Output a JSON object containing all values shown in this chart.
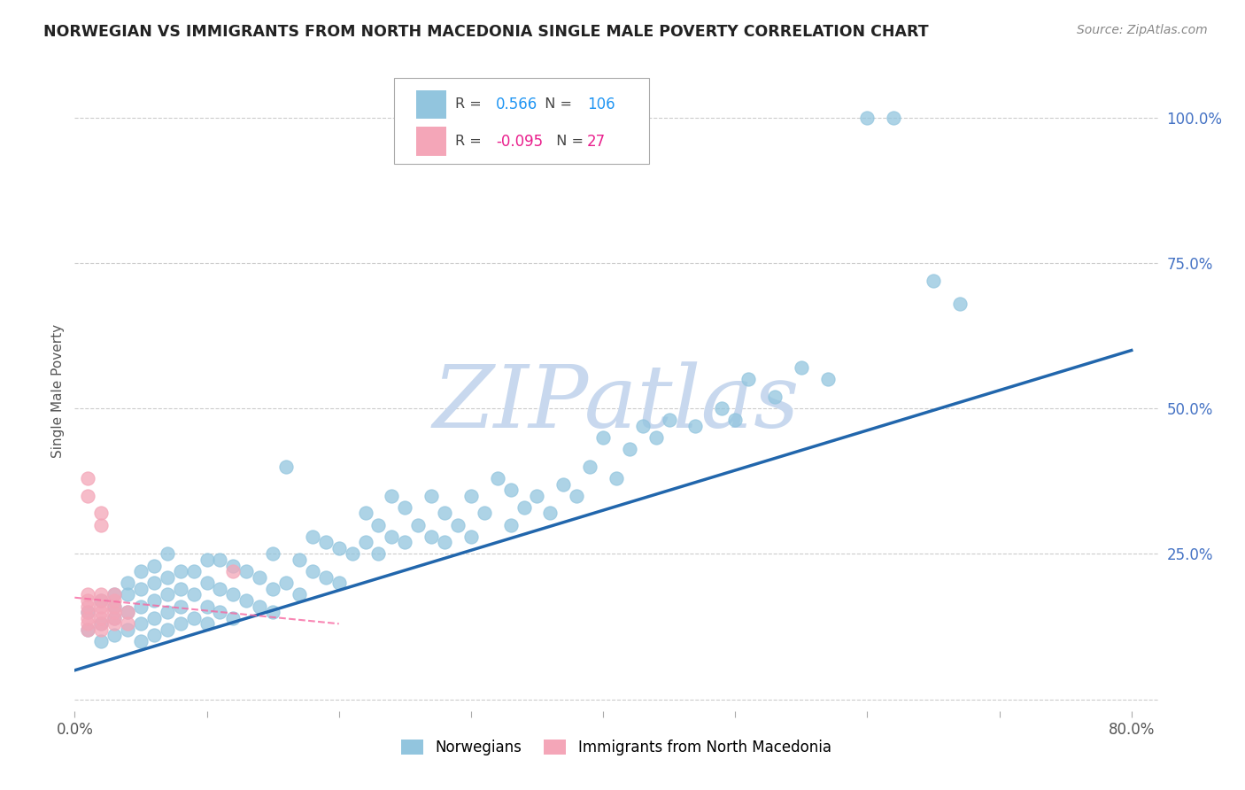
{
  "title": "NORWEGIAN VS IMMIGRANTS FROM NORTH MACEDONIA SINGLE MALE POVERTY CORRELATION CHART",
  "source": "Source: ZipAtlas.com",
  "ylabel": "Single Male Poverty",
  "xlim": [
    0.0,
    0.82
  ],
  "ylim": [
    -0.02,
    1.08
  ],
  "xtick_positions": [
    0.0,
    0.1,
    0.2,
    0.3,
    0.4,
    0.5,
    0.6,
    0.7,
    0.8
  ],
  "xtick_labels": [
    "0.0%",
    "",
    "",
    "",
    "",
    "",
    "",
    "",
    "80.0%"
  ],
  "ytick_right_values": [
    0.0,
    0.25,
    0.5,
    0.75,
    1.0
  ],
  "ytick_right_labels": [
    "",
    "25.0%",
    "50.0%",
    "75.0%",
    "100.0%"
  ],
  "legend_blue_r": "0.566",
  "legend_blue_n": "106",
  "legend_pink_r": "-0.095",
  "legend_pink_n": "27",
  "blue_color": "#92c5de",
  "pink_color": "#f4a6b8",
  "line_blue_color": "#2166ac",
  "line_pink_color": "#f768a1",
  "watermark": "ZIPatlas",
  "watermark_color": "#c8d8ee",
  "background_color": "#ffffff",
  "grid_color": "#cccccc",
  "blue_line_x0": 0.0,
  "blue_line_y0": 0.05,
  "blue_line_x1": 0.8,
  "blue_line_y1": 0.6,
  "pink_line_x0": 0.0,
  "pink_line_y0": 0.175,
  "pink_line_x1": 0.2,
  "pink_line_y1": 0.13,
  "blue_scatter_x": [
    0.01,
    0.01,
    0.02,
    0.02,
    0.02,
    0.03,
    0.03,
    0.03,
    0.03,
    0.04,
    0.04,
    0.04,
    0.04,
    0.05,
    0.05,
    0.05,
    0.05,
    0.05,
    0.06,
    0.06,
    0.06,
    0.06,
    0.06,
    0.07,
    0.07,
    0.07,
    0.07,
    0.07,
    0.08,
    0.08,
    0.08,
    0.08,
    0.09,
    0.09,
    0.09,
    0.1,
    0.1,
    0.1,
    0.1,
    0.11,
    0.11,
    0.11,
    0.12,
    0.12,
    0.12,
    0.13,
    0.13,
    0.14,
    0.14,
    0.15,
    0.15,
    0.15,
    0.16,
    0.16,
    0.17,
    0.17,
    0.18,
    0.18,
    0.19,
    0.19,
    0.2,
    0.2,
    0.21,
    0.22,
    0.22,
    0.23,
    0.23,
    0.24,
    0.24,
    0.25,
    0.25,
    0.26,
    0.27,
    0.27,
    0.28,
    0.28,
    0.29,
    0.3,
    0.3,
    0.31,
    0.32,
    0.33,
    0.33,
    0.34,
    0.35,
    0.36,
    0.37,
    0.38,
    0.39,
    0.4,
    0.41,
    0.42,
    0.43,
    0.44,
    0.45,
    0.47,
    0.49,
    0.5,
    0.51,
    0.53,
    0.55,
    0.57,
    0.6,
    0.62,
    0.65,
    0.67
  ],
  "blue_scatter_y": [
    0.12,
    0.15,
    0.1,
    0.13,
    0.17,
    0.11,
    0.14,
    0.16,
    0.18,
    0.12,
    0.15,
    0.18,
    0.2,
    0.1,
    0.13,
    0.16,
    0.19,
    0.22,
    0.11,
    0.14,
    0.17,
    0.2,
    0.23,
    0.12,
    0.15,
    0.18,
    0.21,
    0.25,
    0.13,
    0.16,
    0.19,
    0.22,
    0.14,
    0.18,
    0.22,
    0.13,
    0.16,
    0.2,
    0.24,
    0.15,
    0.19,
    0.24,
    0.14,
    0.18,
    0.23,
    0.17,
    0.22,
    0.16,
    0.21,
    0.15,
    0.19,
    0.25,
    0.4,
    0.2,
    0.18,
    0.24,
    0.22,
    0.28,
    0.21,
    0.27,
    0.2,
    0.26,
    0.25,
    0.27,
    0.32,
    0.25,
    0.3,
    0.28,
    0.35,
    0.27,
    0.33,
    0.3,
    0.28,
    0.35,
    0.27,
    0.32,
    0.3,
    0.28,
    0.35,
    0.32,
    0.38,
    0.3,
    0.36,
    0.33,
    0.35,
    0.32,
    0.37,
    0.35,
    0.4,
    0.45,
    0.38,
    0.43,
    0.47,
    0.45,
    0.48,
    0.47,
    0.5,
    0.48,
    0.55,
    0.52,
    0.57,
    0.55,
    1.0,
    1.0,
    0.72,
    0.68
  ],
  "pink_scatter_x": [
    0.01,
    0.01,
    0.01,
    0.01,
    0.01,
    0.01,
    0.01,
    0.01,
    0.01,
    0.02,
    0.02,
    0.02,
    0.02,
    0.02,
    0.02,
    0.02,
    0.02,
    0.02,
    0.03,
    0.03,
    0.03,
    0.03,
    0.03,
    0.03,
    0.04,
    0.04,
    0.12
  ],
  "pink_scatter_y": [
    0.12,
    0.13,
    0.14,
    0.15,
    0.16,
    0.17,
    0.18,
    0.35,
    0.38,
    0.12,
    0.13,
    0.14,
    0.15,
    0.16,
    0.17,
    0.18,
    0.3,
    0.32,
    0.13,
    0.14,
    0.15,
    0.16,
    0.17,
    0.18,
    0.13,
    0.15,
    0.22
  ]
}
